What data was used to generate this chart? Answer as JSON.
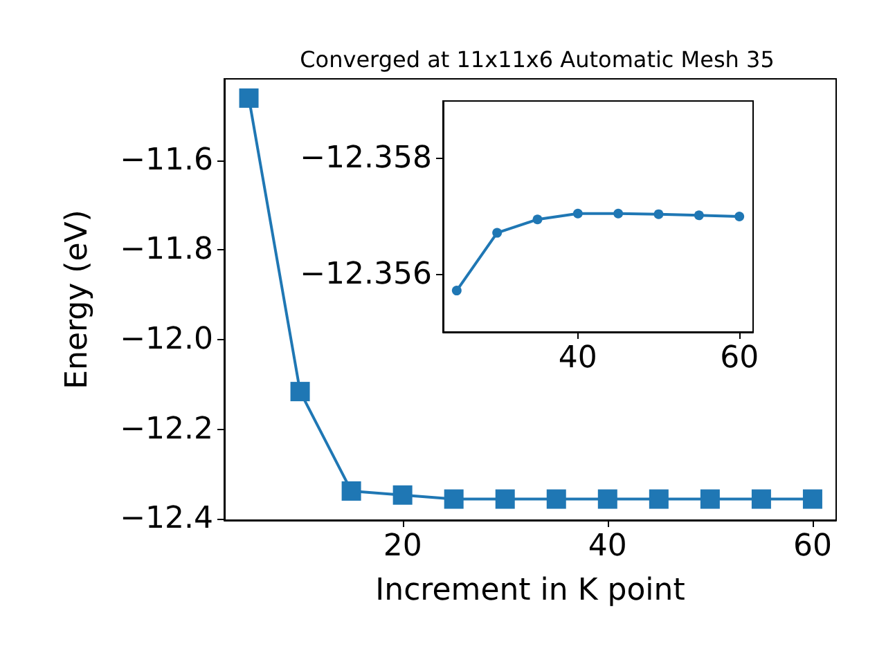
{
  "chart_data": [
    {
      "type": "line",
      "title": "Converged at 11x11x6 Automatic Mesh 35",
      "xlabel": "Increment in K point",
      "ylabel": "Energy (eV)",
      "x": [
        5,
        10,
        15,
        20,
        25,
        30,
        35,
        40,
        45,
        50,
        55,
        60
      ],
      "series": [
        {
          "color": "#1f77b4",
          "values": [
            -11.461,
            -12.116,
            -12.338,
            -12.347,
            -12.356,
            -12.356,
            -12.356,
            -12.356,
            -12.356,
            -12.356,
            -12.356,
            -12.356
          ]
        }
      ],
      "xlim": [
        2.6,
        62.3
      ],
      "ylim": [
        -12.403,
        -11.418
      ],
      "xticks": [
        20,
        40,
        60
      ],
      "yticks": [
        {
          "value": -11.6,
          "label": "−11.6"
        },
        {
          "value": -11.8,
          "label": "−11.8"
        },
        {
          "value": -12.0,
          "label": "−12.0"
        },
        {
          "value": -12.2,
          "label": "−12.2"
        },
        {
          "value": -12.4,
          "label": "−12.4"
        }
      ],
      "marker": "square",
      "line_style": "solid",
      "grid": false
    },
    {
      "type": "line",
      "x": [
        25,
        30,
        35,
        40,
        45,
        50,
        55,
        60
      ],
      "series": [
        {
          "color": "#1f77b4",
          "values": [
            -12.35573,
            -12.35672,
            -12.35695,
            -12.35705,
            -12.35705,
            -12.35704,
            -12.35702,
            -12.357
          ]
        }
      ],
      "xlim": [
        23.3,
        61.7
      ],
      "ylim": [
        -12.35502,
        -12.35898
      ],
      "xticks": [
        40,
        60
      ],
      "yticks": [
        {
          "value": -12.358,
          "label": "−12.358"
        },
        {
          "value": -12.356,
          "label": "−12.356"
        }
      ],
      "marker": "circle",
      "line_style": "solid",
      "grid": false
    }
  ]
}
